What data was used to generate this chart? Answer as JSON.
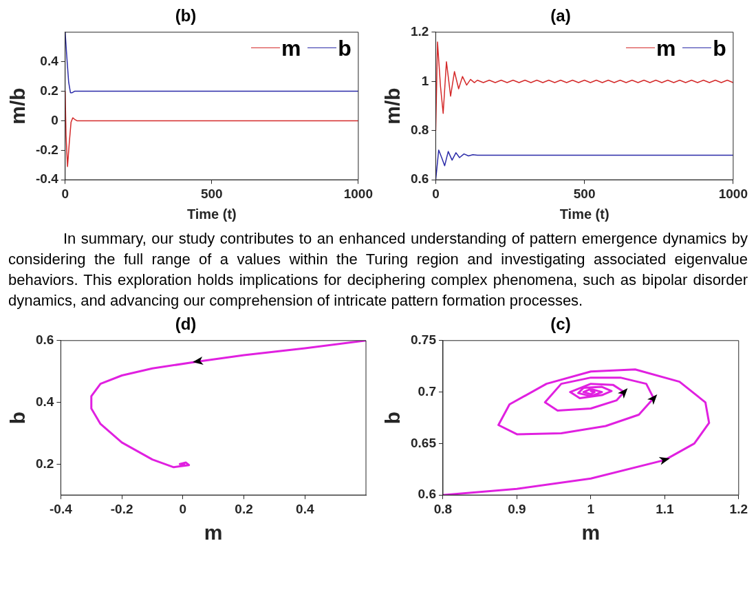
{
  "chart_data": [
    {
      "type": "line",
      "title": "(b)",
      "xlabel": "Time (t)",
      "ylabel": "m/b",
      "xlim": [
        0,
        1000
      ],
      "xticks": [
        0,
        500,
        1000
      ],
      "ylim": [
        -0.4,
        0.6
      ],
      "yticks": [
        -0.4,
        -0.2,
        0,
        0.2,
        0.4
      ],
      "legend": "top right",
      "series": [
        {
          "name": "m",
          "color": "#d42a2a",
          "x": [
            0,
            3,
            8,
            14,
            20,
            26,
            32,
            40,
            60,
            1000
          ],
          "values": [
            0.2,
            -0.1,
            -0.31,
            -0.15,
            -0.01,
            0.02,
            0.01,
            0,
            0,
            0
          ]
        },
        {
          "name": "b",
          "color": "#2a2aa8",
          "x": [
            0,
            5,
            12,
            18,
            24,
            32,
            45,
            1000
          ],
          "values": [
            0.6,
            0.45,
            0.26,
            0.19,
            0.19,
            0.2,
            0.2,
            0.2
          ]
        }
      ]
    },
    {
      "type": "line",
      "title": "(a)",
      "xlabel": "Time (t)",
      "ylabel": "m/b",
      "xlim": [
        0,
        1000
      ],
      "xticks": [
        0,
        500,
        1000
      ],
      "ylim": [
        0.6,
        1.2
      ],
      "yticks": [
        0.6,
        0.8,
        1,
        1.2
      ],
      "legend": "top right",
      "series": [
        {
          "name": "m",
          "color": "#d42a2a",
          "x": [
            0,
            6,
            16,
            25,
            36,
            50,
            63,
            77,
            90,
            104,
            117,
            130,
            140,
            160,
            180,
            200,
            220,
            240,
            260,
            280,
            300,
            320,
            340,
            360,
            380,
            400,
            420,
            440,
            460,
            480,
            500,
            520,
            540,
            560,
            580,
            600,
            620,
            640,
            660,
            680,
            700,
            720,
            740,
            760,
            780,
            800,
            820,
            840,
            860,
            880,
            900,
            920,
            940,
            960,
            980,
            1000
          ],
          "values": [
            0.8,
            1.16,
            0.98,
            0.87,
            1.08,
            0.94,
            1.04,
            0.97,
            1.02,
            0.985,
            1.008,
            0.995,
            1.005,
            0.995,
            1.005,
            0.995,
            1.005,
            0.995,
            1.005,
            0.995,
            1.005,
            0.995,
            1.005,
            0.995,
            1.005,
            0.995,
            1.005,
            0.995,
            1.005,
            0.995,
            1.005,
            0.995,
            1.005,
            0.995,
            1.005,
            0.995,
            1.005,
            0.995,
            1.005,
            0.995,
            1.005,
            0.995,
            1.005,
            0.995,
            1.005,
            0.995,
            1.005,
            0.995,
            1.005,
            0.995,
            1.005,
            0.995,
            1.005,
            0.995,
            1.005,
            0.995
          ]
        },
        {
          "name": "b",
          "color": "#2a2aa8",
          "x": [
            0,
            10,
            20,
            30,
            42,
            55,
            68,
            80,
            95,
            110,
            125,
            140,
            1000
          ],
          "values": [
            0.6,
            0.721,
            0.69,
            0.657,
            0.715,
            0.68,
            0.71,
            0.69,
            0.705,
            0.697,
            0.702,
            0.7,
            0.7
          ]
        }
      ]
    },
    {
      "type": "other",
      "annotations": [
        "In summary, our study contributes to an enhanced understanding of pattern emergence dynamics by considering the full range of a values within the Turing region and investigating associated eigenvalue behaviors. This exploration holds implications for deciphering complex phenomena, such as bipolar disorder dynamics, and advancing our comprehension of intricate pattern formation processes."
      ]
    },
    {
      "type": "line",
      "title": "(d)",
      "xlabel": "m",
      "ylabel": "b",
      "xlim": [
        -0.4,
        0.6
      ],
      "xticks": [
        -0.4,
        -0.2,
        0,
        0.2,
        0.4
      ],
      "ylim": [
        0.1,
        0.6
      ],
      "yticks": [
        0.2,
        0.4,
        0.6
      ],
      "series": [
        {
          "color": "#e020e0",
          "x": [
            0.6,
            0.4,
            0.2,
            0.05,
            -0.1,
            -0.2,
            -0.27,
            -0.3,
            -0.3,
            -0.27,
            -0.2,
            -0.1,
            -0.03,
            0.02,
            0.01,
            -0.01,
            0.005,
            0.002
          ],
          "values": [
            0.6,
            0.575,
            0.553,
            0.532,
            0.51,
            0.487,
            0.46,
            0.42,
            0.38,
            0.33,
            0.27,
            0.215,
            0.19,
            0.197,
            0.205,
            0.2,
            0.198,
            0.2
          ]
        }
      ]
    },
    {
      "type": "line",
      "title": "(c)",
      "xlabel": "m",
      "ylabel": "b",
      "xlim": [
        0.8,
        1.2
      ],
      "xticks": [
        0.8,
        0.9,
        1,
        1.1,
        1.2
      ],
      "ylim": [
        0.6,
        0.75
      ],
      "yticks": [
        0.6,
        0.65,
        0.7,
        0.75
      ],
      "series": [
        {
          "color": "#e020e0",
          "x": [
            0.8,
            0.9,
            1.0,
            1.1,
            1.14,
            1.16,
            1.155,
            1.12,
            1.06,
            1.0,
            0.94,
            0.89,
            0.875,
            0.9,
            0.96,
            1.02,
            1.065,
            1.085,
            1.075,
            1.04,
            1.0,
            0.96,
            0.938,
            0.955,
            1.0,
            1.035,
            1.045,
            1.03,
            1.0,
            0.972,
            0.985,
            1.015,
            1.028,
            1.015,
            0.99,
            0.983,
            1.0,
            1.015,
            1.0,
            0.99,
            1.0,
            1.005,
            1.0
          ],
          "values": [
            0.6,
            0.606,
            0.616,
            0.634,
            0.65,
            0.67,
            0.69,
            0.71,
            0.722,
            0.72,
            0.708,
            0.688,
            0.668,
            0.659,
            0.66,
            0.667,
            0.678,
            0.694,
            0.708,
            0.714,
            0.714,
            0.708,
            0.69,
            0.682,
            0.684,
            0.692,
            0.7,
            0.707,
            0.708,
            0.7,
            0.694,
            0.697,
            0.701,
            0.705,
            0.704,
            0.699,
            0.696,
            0.7,
            0.703,
            0.7,
            0.698,
            0.7,
            0.701
          ]
        }
      ]
    }
  ]
}
